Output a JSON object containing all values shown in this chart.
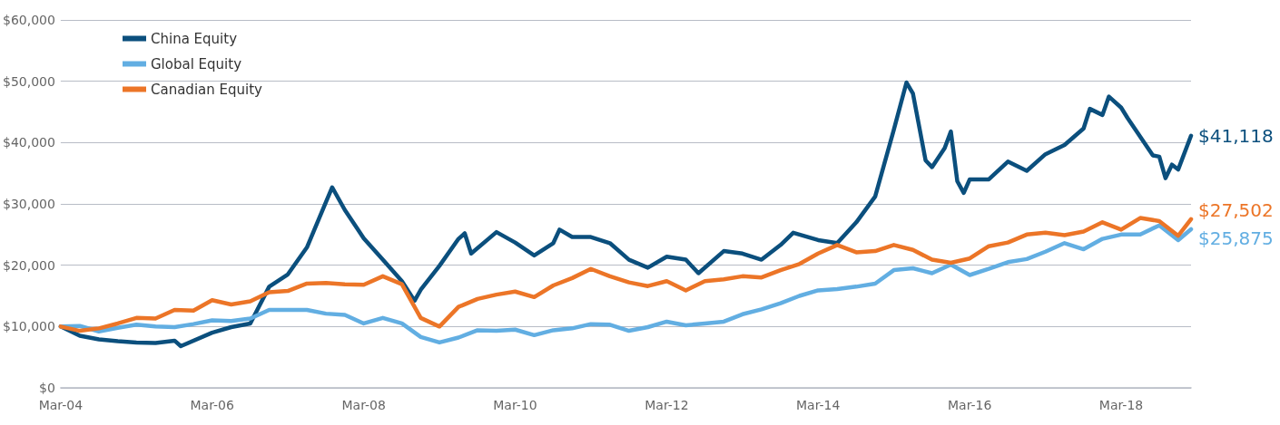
{
  "chart_data": {
    "type": "line",
    "ylim": [
      0,
      60000
    ],
    "yticks": [
      {
        "value": 0,
        "label": "$0"
      },
      {
        "value": 10000,
        "label": "$10,000"
      },
      {
        "value": 20000,
        "label": "$20,000"
      },
      {
        "value": 30000,
        "label": "$30,000"
      },
      {
        "value": 40000,
        "label": "$40,000"
      },
      {
        "value": 50000,
        "label": "$50,000"
      },
      {
        "value": 60000,
        "label": "$60,000"
      }
    ],
    "xlim": [
      "2004-03",
      "2019-02"
    ],
    "xticks": [
      {
        "value": "2004-03",
        "label": "Mar-04"
      },
      {
        "value": "2006-03",
        "label": "Mar-06"
      },
      {
        "value": "2008-03",
        "label": "Mar-08"
      },
      {
        "value": "2010-03",
        "label": "Mar-10"
      },
      {
        "value": "2012-03",
        "label": "Mar-12"
      },
      {
        "value": "2014-03",
        "label": "Mar-14"
      },
      {
        "value": "2016-03",
        "label": "Mar-16"
      },
      {
        "value": "2018-03",
        "label": "Mar-18"
      }
    ],
    "grid": "y",
    "legend": "top left",
    "marker": "none",
    "line_style": "solid",
    "series": [
      {
        "name": "China Equity",
        "color": "#0b4f7d",
        "x": [
          "2004-03",
          "2004-06",
          "2004-09",
          "2004-12",
          "2005-03",
          "2005-06",
          "2005-09",
          "2005-10",
          "2006-03",
          "2006-06",
          "2006-09",
          "2006-12",
          "2007-03",
          "2007-06",
          "2007-09",
          "2007-10",
          "2007-12",
          "2008-03",
          "2008-06",
          "2008-09",
          "2008-11",
          "2008-12",
          "2009-03",
          "2009-06",
          "2009-07",
          "2009-08",
          "2009-12",
          "2010-03",
          "2010-06",
          "2010-09",
          "2010-10",
          "2010-12",
          "2011-03",
          "2011-06",
          "2011-09",
          "2011-12",
          "2012-03",
          "2012-06",
          "2012-08",
          "2012-12",
          "2013-03",
          "2013-06",
          "2013-09",
          "2013-11",
          "2014-03",
          "2014-06",
          "2014-09",
          "2014-12",
          "2015-03",
          "2015-05",
          "2015-06",
          "2015-08",
          "2015-09",
          "2015-11",
          "2015-12",
          "2016-01",
          "2016-02",
          "2016-03",
          "2016-06",
          "2016-09",
          "2016-12",
          "2017-03",
          "2017-06",
          "2017-09",
          "2017-10",
          "2017-12",
          "2018-01",
          "2018-03",
          "2018-04",
          "2018-08",
          "2018-09",
          "2018-10",
          "2018-11",
          "2018-12",
          "2019-02"
        ],
        "values": [
          10000,
          8500,
          7900,
          7600,
          7400,
          7300,
          7700,
          6800,
          9000,
          9900,
          10500,
          16500,
          18500,
          22900,
          30300,
          32700,
          29000,
          24400,
          20900,
          17400,
          14200,
          16000,
          19900,
          24300,
          25200,
          21900,
          25400,
          23700,
          21600,
          23600,
          25800,
          24600,
          24600,
          23600,
          20900,
          19600,
          21400,
          20900,
          18700,
          22300,
          21900,
          20900,
          23300,
          25300,
          24100,
          23600,
          27000,
          31200,
          42100,
          49800,
          48000,
          37100,
          36000,
          39100,
          41800,
          33700,
          31800,
          34000,
          34000,
          36900,
          35400,
          38100,
          39600,
          42300,
          45500,
          44500,
          47500,
          45700,
          44000,
          37900,
          37700,
          34200,
          36400,
          35600,
          41118
        ],
        "value_labels": [
          null,
          null,
          null,
          null,
          null,
          null,
          null,
          null,
          null,
          null,
          null,
          null,
          null,
          null,
          null,
          null,
          null,
          null,
          null,
          null,
          null,
          null,
          null,
          null,
          null,
          null,
          null,
          null,
          null,
          null,
          null,
          null,
          null,
          null,
          null,
          null,
          null,
          null,
          null,
          null,
          null,
          null,
          null,
          null,
          null,
          null,
          null,
          null,
          null,
          null,
          null,
          null,
          null,
          null,
          null,
          null,
          null,
          null,
          null,
          null,
          null,
          null,
          null,
          null,
          null,
          null,
          null,
          null,
          null,
          null,
          null,
          null,
          null,
          null,
          "$41,118"
        ]
      },
      {
        "name": "Global Equity",
        "color": "#62aee2",
        "x": [
          "2004-03",
          "2004-06",
          "2004-09",
          "2004-12",
          "2005-03",
          "2005-06",
          "2005-09",
          "2005-12",
          "2006-03",
          "2006-06",
          "2006-09",
          "2006-12",
          "2007-03",
          "2007-06",
          "2007-09",
          "2007-12",
          "2008-03",
          "2008-06",
          "2008-09",
          "2008-12",
          "2009-03",
          "2009-06",
          "2009-09",
          "2009-12",
          "2010-03",
          "2010-06",
          "2010-09",
          "2010-12",
          "2011-03",
          "2011-06",
          "2011-09",
          "2011-12",
          "2012-03",
          "2012-06",
          "2012-09",
          "2012-12",
          "2013-03",
          "2013-06",
          "2013-09",
          "2013-12",
          "2014-03",
          "2014-06",
          "2014-09",
          "2014-12",
          "2015-03",
          "2015-06",
          "2015-09",
          "2015-12",
          "2016-03",
          "2016-06",
          "2016-09",
          "2016-12",
          "2017-03",
          "2017-06",
          "2017-09",
          "2017-12",
          "2018-03",
          "2018-06",
          "2018-09",
          "2018-12",
          "2019-02"
        ],
        "values": [
          10000,
          10100,
          9200,
          9800,
          10300,
          10000,
          9900,
          10400,
          11000,
          10900,
          11300,
          12700,
          12700,
          12700,
          12100,
          11900,
          10500,
          11400,
          10500,
          8300,
          7400,
          8200,
          9400,
          9300,
          9500,
          8600,
          9400,
          9700,
          10400,
          10300,
          9300,
          9900,
          10800,
          10200,
          10500,
          10800,
          12000,
          12800,
          13800,
          15000,
          15900,
          16100,
          16500,
          17000,
          19200,
          19500,
          18700,
          20100,
          18400,
          19400,
          20500,
          21000,
          22200,
          23600,
          22600,
          24300,
          25000,
          25000,
          26500,
          24100,
          25875
        ],
        "value_labels": [
          null,
          null,
          null,
          null,
          null,
          null,
          null,
          null,
          null,
          null,
          null,
          null,
          null,
          null,
          null,
          null,
          null,
          null,
          null,
          null,
          null,
          null,
          null,
          null,
          null,
          null,
          null,
          null,
          null,
          null,
          null,
          null,
          null,
          null,
          null,
          null,
          null,
          null,
          null,
          null,
          null,
          null,
          null,
          null,
          null,
          null,
          null,
          null,
          null,
          null,
          null,
          null,
          null,
          null,
          null,
          null,
          null,
          null,
          null,
          null,
          "$25,875"
        ]
      },
      {
        "name": "Canadian Equity",
        "color": "#ec7527",
        "x": [
          "2004-03",
          "2004-06",
          "2004-09",
          "2004-12",
          "2005-03",
          "2005-06",
          "2005-09",
          "2005-12",
          "2006-03",
          "2006-06",
          "2006-09",
          "2006-12",
          "2007-03",
          "2007-06",
          "2007-09",
          "2007-12",
          "2008-03",
          "2008-06",
          "2008-09",
          "2008-12",
          "2009-03",
          "2009-06",
          "2009-09",
          "2009-12",
          "2010-03",
          "2010-06",
          "2010-09",
          "2010-12",
          "2011-03",
          "2011-06",
          "2011-09",
          "2011-12",
          "2012-03",
          "2012-06",
          "2012-09",
          "2012-12",
          "2013-03",
          "2013-06",
          "2013-09",
          "2013-12",
          "2014-03",
          "2014-06",
          "2014-09",
          "2014-12",
          "2015-03",
          "2015-06",
          "2015-09",
          "2015-12",
          "2016-03",
          "2016-06",
          "2016-09",
          "2016-12",
          "2017-03",
          "2017-06",
          "2017-09",
          "2017-12",
          "2018-03",
          "2018-06",
          "2018-09",
          "2018-12",
          "2019-02"
        ],
        "values": [
          10000,
          9300,
          9700,
          10500,
          11400,
          11300,
          12700,
          12600,
          14300,
          13600,
          14100,
          15600,
          15800,
          17000,
          17100,
          16900,
          16800,
          18200,
          16900,
          11400,
          10000,
          13200,
          14500,
          15200,
          15700,
          14800,
          16700,
          17900,
          19400,
          18200,
          17200,
          16600,
          17400,
          15900,
          17400,
          17700,
          18200,
          18000,
          19200,
          20200,
          21900,
          23300,
          22100,
          22300,
          23300,
          22500,
          20900,
          20400,
          21100,
          23100,
          23700,
          25000,
          25300,
          24900,
          25500,
          27000,
          25800,
          27700,
          27200,
          24800,
          27502
        ],
        "value_labels": [
          null,
          null,
          null,
          null,
          null,
          null,
          null,
          null,
          null,
          null,
          null,
          null,
          null,
          null,
          null,
          null,
          null,
          null,
          null,
          null,
          null,
          null,
          null,
          null,
          null,
          null,
          null,
          null,
          null,
          null,
          null,
          null,
          null,
          null,
          null,
          null,
          null,
          null,
          null,
          null,
          null,
          null,
          null,
          null,
          null,
          null,
          null,
          null,
          null,
          null,
          null,
          null,
          null,
          null,
          null,
          null,
          null,
          null,
          null,
          null,
          "$27,502"
        ]
      }
    ]
  }
}
